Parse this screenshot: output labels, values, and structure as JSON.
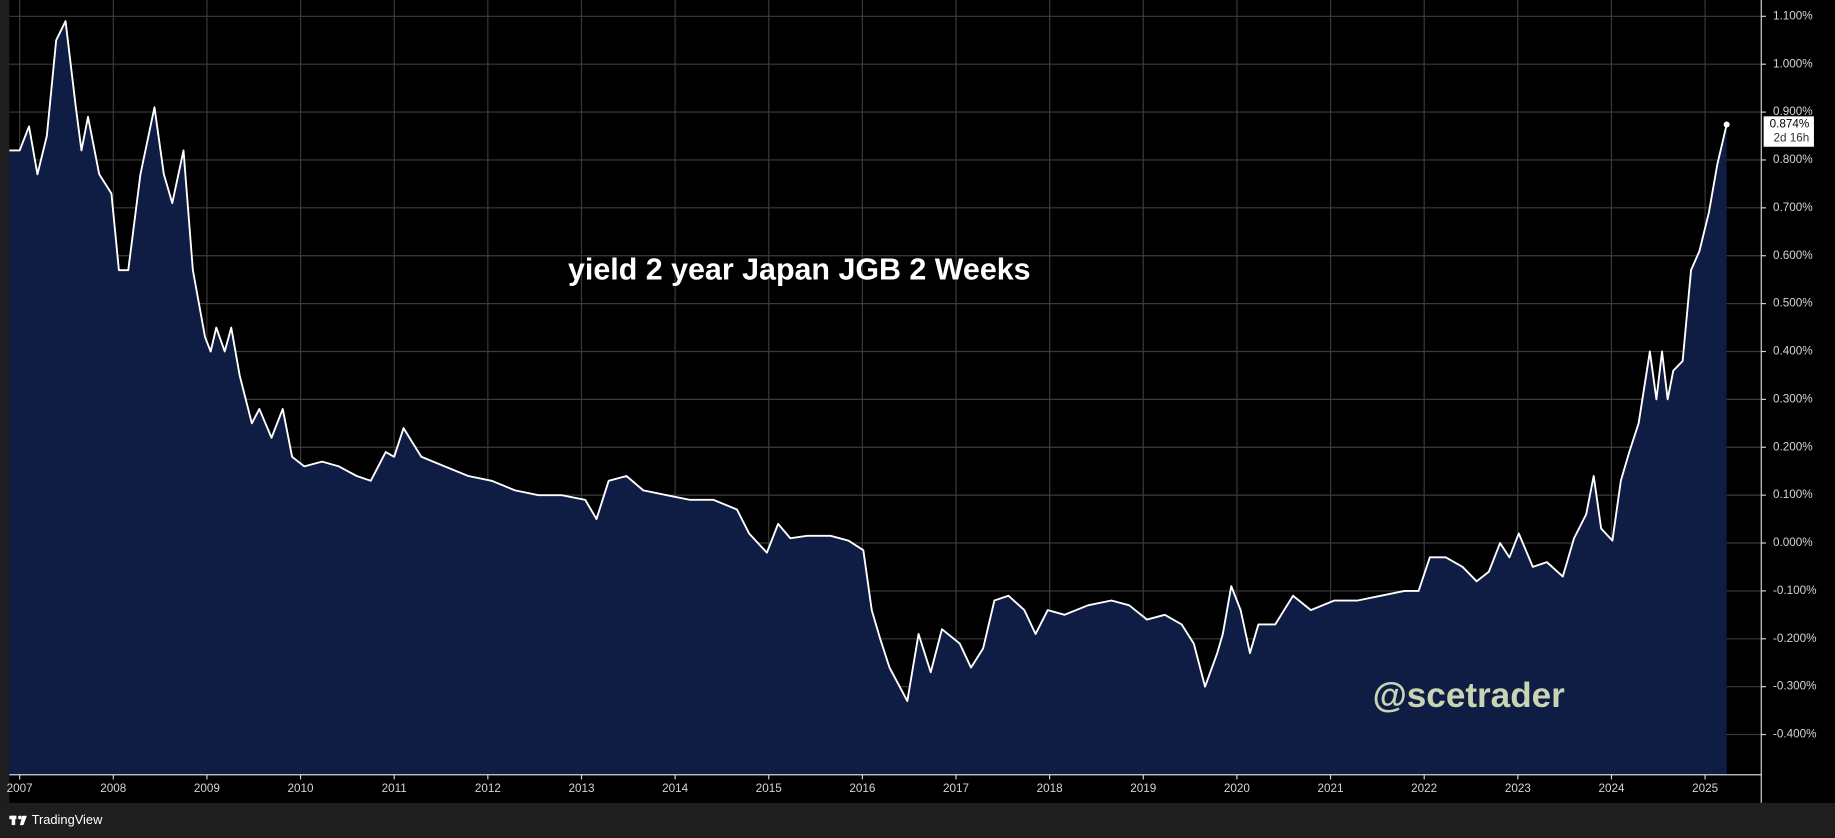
{
  "chart_data": {
    "type": "area",
    "title": "yield 2 year Japan JGB 2 Weeks",
    "watermark": "@scetrader",
    "brand": "TradingView",
    "series": [
      {
        "name": "yield 2 year Japan JGB",
        "color": "#ffffff",
        "fill": "#0f1d45",
        "x": [
          2006.89,
          2007.0,
          2007.1,
          2007.19,
          2007.29,
          2007.39,
          2007.49,
          2007.6,
          2007.66,
          2007.73,
          2007.85,
          2007.98,
          2008.06,
          2008.16,
          2008.29,
          2008.44,
          2008.54,
          2008.63,
          2008.75,
          2008.85,
          2008.98,
          2009.04,
          2009.1,
          2009.19,
          2009.26,
          2009.35,
          2009.48,
          2009.56,
          2009.69,
          2009.81,
          2009.91,
          2010.04,
          2010.23,
          2010.41,
          2010.6,
          2010.75,
          2010.91,
          2011.0,
          2011.1,
          2011.29,
          2011.54,
          2011.79,
          2012.04,
          2012.29,
          2012.54,
          2012.79,
          2013.04,
          2013.16,
          2013.29,
          2013.48,
          2013.66,
          2013.91,
          2014.16,
          2014.41,
          2014.66,
          2014.79,
          2014.98,
          2015.1,
          2015.23,
          2015.41,
          2015.66,
          2015.85,
          2016.01,
          2016.1,
          2016.19,
          2016.29,
          2016.48,
          2016.6,
          2016.73,
          2016.85,
          2017.04,
          2017.16,
          2017.29,
          2017.41,
          2017.56,
          2017.73,
          2017.85,
          2017.98,
          2018.16,
          2018.41,
          2018.66,
          2018.85,
          2019.04,
          2019.23,
          2019.41,
          2019.54,
          2019.66,
          2019.79,
          2019.85,
          2019.94,
          2020.04,
          2020.14,
          2020.23,
          2020.41,
          2020.6,
          2020.79,
          2021.04,
          2021.29,
          2021.54,
          2021.79,
          2021.94,
          2022.06,
          2022.23,
          2022.41,
          2022.56,
          2022.69,
          2022.81,
          2022.91,
          2023.01,
          2023.16,
          2023.31,
          2023.48,
          2023.6,
          2023.73,
          2023.81,
          2023.89,
          2024.01,
          2024.1,
          2024.19,
          2024.29,
          2024.41,
          2024.48,
          2024.54,
          2024.6,
          2024.66,
          2024.76,
          2024.85,
          2024.94,
          2025.04,
          2025.13,
          2025.23
        ],
        "values": [
          0.82,
          0.82,
          0.87,
          0.77,
          0.85,
          1.05,
          1.09,
          0.91,
          0.82,
          0.89,
          0.77,
          0.73,
          0.57,
          0.57,
          0.77,
          0.91,
          0.77,
          0.71,
          0.82,
          0.57,
          0.43,
          0.4,
          0.45,
          0.4,
          0.45,
          0.35,
          0.25,
          0.28,
          0.22,
          0.28,
          0.18,
          0.16,
          0.17,
          0.16,
          0.14,
          0.13,
          0.19,
          0.18,
          0.24,
          0.18,
          0.16,
          0.14,
          0.13,
          0.11,
          0.1,
          0.1,
          0.09,
          0.05,
          0.13,
          0.14,
          0.11,
          0.1,
          0.09,
          0.09,
          0.07,
          0.02,
          -0.02,
          0.04,
          0.01,
          0.015,
          0.015,
          0.005,
          -0.015,
          -0.14,
          -0.2,
          -0.26,
          -0.33,
          -0.19,
          -0.27,
          -0.18,
          -0.21,
          -0.26,
          -0.22,
          -0.12,
          -0.11,
          -0.14,
          -0.19,
          -0.14,
          -0.15,
          -0.13,
          -0.12,
          -0.13,
          -0.16,
          -0.15,
          -0.17,
          -0.21,
          -0.3,
          -0.23,
          -0.19,
          -0.09,
          -0.14,
          -0.23,
          -0.17,
          -0.17,
          -0.11,
          -0.14,
          -0.12,
          -0.12,
          -0.11,
          -0.1,
          -0.1,
          -0.03,
          -0.03,
          -0.05,
          -0.08,
          -0.06,
          0.0,
          -0.03,
          0.02,
          -0.05,
          -0.04,
          -0.07,
          0.01,
          0.06,
          0.14,
          0.03,
          0.005,
          0.13,
          0.19,
          0.25,
          0.4,
          0.3,
          0.4,
          0.3,
          0.36,
          0.38,
          0.57,
          0.61,
          0.69,
          0.79,
          0.874
        ]
      }
    ],
    "last_price": {
      "value": 0.874,
      "label": "0.874%",
      "countdown": "2d 16h"
    },
    "xlim": [
      2006.89,
      2025.6
    ],
    "xticks": [
      2007,
      2008,
      2009,
      2010,
      2011,
      2012,
      2013,
      2014,
      2015,
      2016,
      2017,
      2018,
      2019,
      2020,
      2021,
      2022,
      2023,
      2024,
      2025
    ],
    "ylim": [
      -0.484,
      1.134
    ],
    "yticks": [
      {
        "value": -0.4,
        "label": "-0.400%"
      },
      {
        "value": -0.3,
        "label": "-0.300%"
      },
      {
        "value": -0.2,
        "label": "-0.200%"
      },
      {
        "value": -0.1,
        "label": "-0.100%"
      },
      {
        "value": 0,
        "label": "0.000%"
      },
      {
        "value": 0.1,
        "label": "0.100%"
      },
      {
        "value": 0.2,
        "label": "0.200%"
      },
      {
        "value": 0.3,
        "label": "0.300%"
      },
      {
        "value": 0.4,
        "label": "0.400%"
      },
      {
        "value": 0.5,
        "label": "0.500%"
      },
      {
        "value": 0.6,
        "label": "0.600%"
      },
      {
        "value": 0.7,
        "label": "0.700%"
      },
      {
        "value": 0.8,
        "label": "0.800%"
      },
      {
        "value": 0.9,
        "label": "0.900%"
      },
      {
        "value": 1.0,
        "label": "1.000%"
      },
      {
        "value": 1.1,
        "label": "1.100%"
      }
    ],
    "grid": true
  }
}
